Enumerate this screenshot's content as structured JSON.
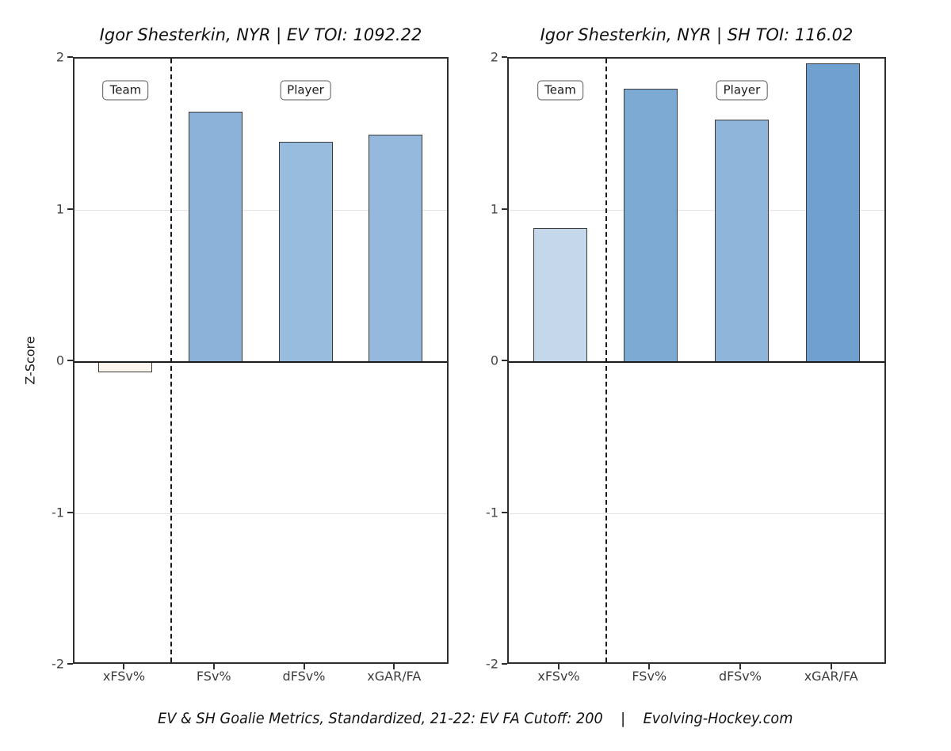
{
  "caption": "EV & SH Goalie Metrics, Standardized, 21-22: EV FA Cutoff: 200    |    Evolving-Hockey.com",
  "y_axis_title": "Z-Score",
  "chart_data": [
    {
      "type": "bar",
      "title": "Igor Shesterkin, NYR | EV TOI: 1092.22",
      "ylabel": "Z-Score",
      "ylim": [
        -2,
        2
      ],
      "yticks": [
        "2",
        "1",
        "0",
        "-1",
        "-2"
      ],
      "grid": "horizontal major lines at 1 and -1",
      "legend_position": "none",
      "categories": [
        "xFSv%",
        "FSv%",
        "dFSv%",
        "xGAR/FA"
      ],
      "values": [
        -0.07,
        1.65,
        1.45,
        1.5
      ],
      "bar_colors": [
        "#fdf6ee",
        "#8cb2d9",
        "#98bcde",
        "#95b9dc"
      ],
      "annotations": [
        {
          "label": "Team",
          "at_category": 0,
          "z": 1.79
        },
        {
          "label": "Player",
          "at_category": 2,
          "z": 1.79
        }
      ],
      "separator": "dashed vertical line between xFSv% and FSv%",
      "zero_reference_line": 0
    },
    {
      "type": "bar",
      "title": "Igor Shesterkin, NYR | SH TOI: 116.02",
      "ylabel": "",
      "ylim": [
        -2,
        2
      ],
      "yticks": [
        "2",
        "1",
        "0",
        "-1",
        "-2"
      ],
      "grid": "horizontal major lines at 1 and -1",
      "legend_position": "none",
      "categories": [
        "xFSv%",
        "FSv%",
        "dFSv%",
        "xGAR/FA"
      ],
      "values": [
        0.88,
        1.8,
        1.6,
        1.97
      ],
      "bar_colors": [
        "#c4d7eb",
        "#7caad3",
        "#8fb5da",
        "#6fa0d0"
      ],
      "annotations": [
        {
          "label": "Team",
          "at_category": 0,
          "z": 1.79
        },
        {
          "label": "Player",
          "at_category": 2,
          "z": 1.79
        }
      ],
      "separator": "dashed vertical line between xFSv% and FSv%",
      "zero_reference_line": 0
    }
  ]
}
